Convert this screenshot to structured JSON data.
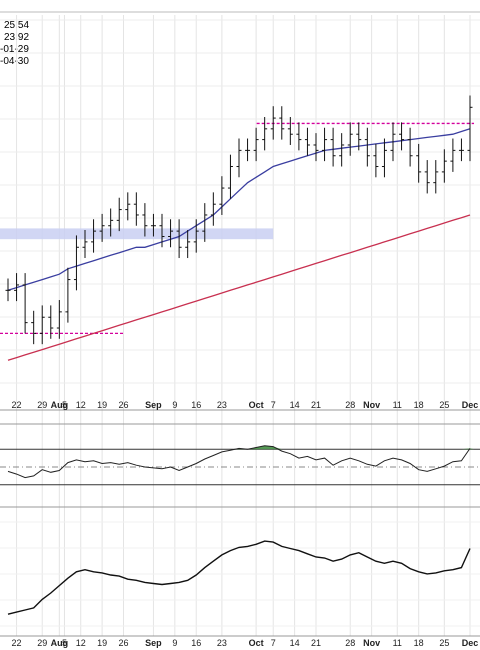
{
  "info": [
    "25.54",
    "23.92",
    "-01-29",
    "-04-30"
  ],
  "chart_data": [
    {
      "type": "ohlc",
      "x_tick_labels": [
        "22",
        "29",
        "Aug",
        "5",
        "12",
        "19",
        "26",
        "Sep",
        "9",
        "16",
        "23",
        "Oct",
        "7",
        "14",
        "21",
        "28",
        "Nov",
        "11",
        "18",
        "25",
        "Dec"
      ],
      "bold_ticks": [
        "Aug",
        "Sep",
        "Oct",
        "Nov",
        "Dec"
      ],
      "grid": true,
      "close": [
        22.0,
        22.1,
        21.4,
        21.2,
        21.5,
        21.3,
        21.6,
        22.2,
        22.8,
        22.9,
        23.1,
        23.2,
        23.3,
        23.5,
        23.6,
        23.4,
        23.2,
        23.2,
        23.0,
        23.1,
        22.8,
        22.9,
        23.1,
        23.4,
        23.6,
        23.9,
        24.3,
        24.6,
        24.6,
        24.8,
        25.0,
        25.2,
        25.0,
        24.9,
        24.8,
        24.7,
        24.6,
        24.8,
        24.5,
        24.7,
        24.9,
        24.8,
        24.5,
        24.3,
        24.6,
        24.9,
        24.8,
        24.5,
        24.2,
        24.0,
        24.2,
        24.4,
        24.6,
        24.6,
        25.4
      ],
      "series": [
        {
          "name": "",
          "color": "#3a3ea0",
          "values": [
            22.0,
            22.05,
            22.1,
            22.15,
            22.2,
            22.25,
            22.3,
            22.4,
            22.45,
            22.5,
            22.55,
            22.6,
            22.65,
            22.7,
            22.75,
            22.8,
            22.8,
            22.85,
            22.9,
            22.95,
            23.0,
            23.1,
            23.2,
            23.3,
            23.4,
            23.55,
            23.7,
            23.85,
            24.0,
            24.1,
            24.2,
            24.3,
            24.35,
            24.4,
            24.45,
            24.5,
            24.55,
            24.6,
            24.62,
            24.64,
            24.66,
            24.68,
            24.7,
            24.72,
            24.74,
            24.76,
            24.78,
            24.8,
            24.82,
            24.84,
            24.86,
            24.88,
            24.9,
            24.95,
            25.0
          ]
        },
        {
          "name": "",
          "color": "#c83050",
          "values": [
            20.7,
            20.75,
            20.8,
            20.85,
            20.9,
            20.95,
            21.0,
            21.05,
            21.1,
            21.15,
            21.2,
            21.25,
            21.3,
            21.35,
            21.4,
            21.45,
            21.5,
            21.55,
            21.6,
            21.65,
            21.7,
            21.75,
            21.8,
            21.85,
            21.9,
            21.95,
            22.0,
            22.05,
            22.1,
            22.15,
            22.2,
            22.25,
            22.3,
            22.35,
            22.4,
            22.45,
            22.5,
            22.55,
            22.6,
            22.65,
            22.7,
            22.75,
            22.8,
            22.85,
            22.9,
            22.95,
            23.0,
            23.05,
            23.1,
            23.15,
            23.2,
            23.25,
            23.3,
            23.35,
            23.4
          ]
        }
      ],
      "annotations": [
        {
          "kind": "hline_dashed",
          "color": "#d4009c",
          "y": 21.2,
          "from": 0,
          "to": 13
        },
        {
          "kind": "hline_dashed",
          "color": "#d4009c",
          "y": 25.1,
          "from": 30,
          "to": 54
        },
        {
          "kind": "band",
          "color": "#c9cff2",
          "y": [
            22.95,
            23.15
          ],
          "from": 0,
          "to": 31
        }
      ],
      "ylim": [
        20.0,
        26.0
      ]
    },
    {
      "type": "line",
      "reference_lines": [
        30,
        50,
        70
      ],
      "ylim": [
        15,
        85
      ],
      "values": [
        45,
        42,
        38,
        40,
        47,
        44,
        46,
        55,
        58,
        56,
        57,
        54,
        55,
        53,
        55,
        52,
        50,
        49,
        48,
        50,
        46,
        50,
        54,
        59,
        63,
        67,
        69,
        71,
        70,
        72,
        74,
        73,
        68,
        65,
        60,
        62,
        58,
        60,
        52,
        57,
        60,
        57,
        53,
        51,
        57,
        60,
        58,
        54,
        47,
        45,
        48,
        51,
        56,
        57,
        71
      ]
    },
    {
      "type": "line",
      "values": [
        -0.42,
        -0.4,
        -0.38,
        -0.36,
        -0.28,
        -0.22,
        -0.15,
        -0.08,
        -0.02,
        0.0,
        -0.02,
        -0.03,
        -0.05,
        -0.06,
        -0.09,
        -0.1,
        -0.12,
        -0.13,
        -0.14,
        -0.13,
        -0.12,
        -0.1,
        -0.05,
        0.02,
        0.08,
        0.14,
        0.18,
        0.21,
        0.22,
        0.24,
        0.27,
        0.26,
        0.22,
        0.2,
        0.18,
        0.15,
        0.12,
        0.11,
        0.08,
        0.1,
        0.14,
        0.16,
        0.12,
        0.08,
        0.06,
        0.08,
        0.06,
        0.01,
        -0.02,
        -0.04,
        -0.03,
        -0.01,
        0.0,
        0.02,
        0.2
      ],
      "ylim": [
        -0.55,
        0.45
      ]
    }
  ]
}
